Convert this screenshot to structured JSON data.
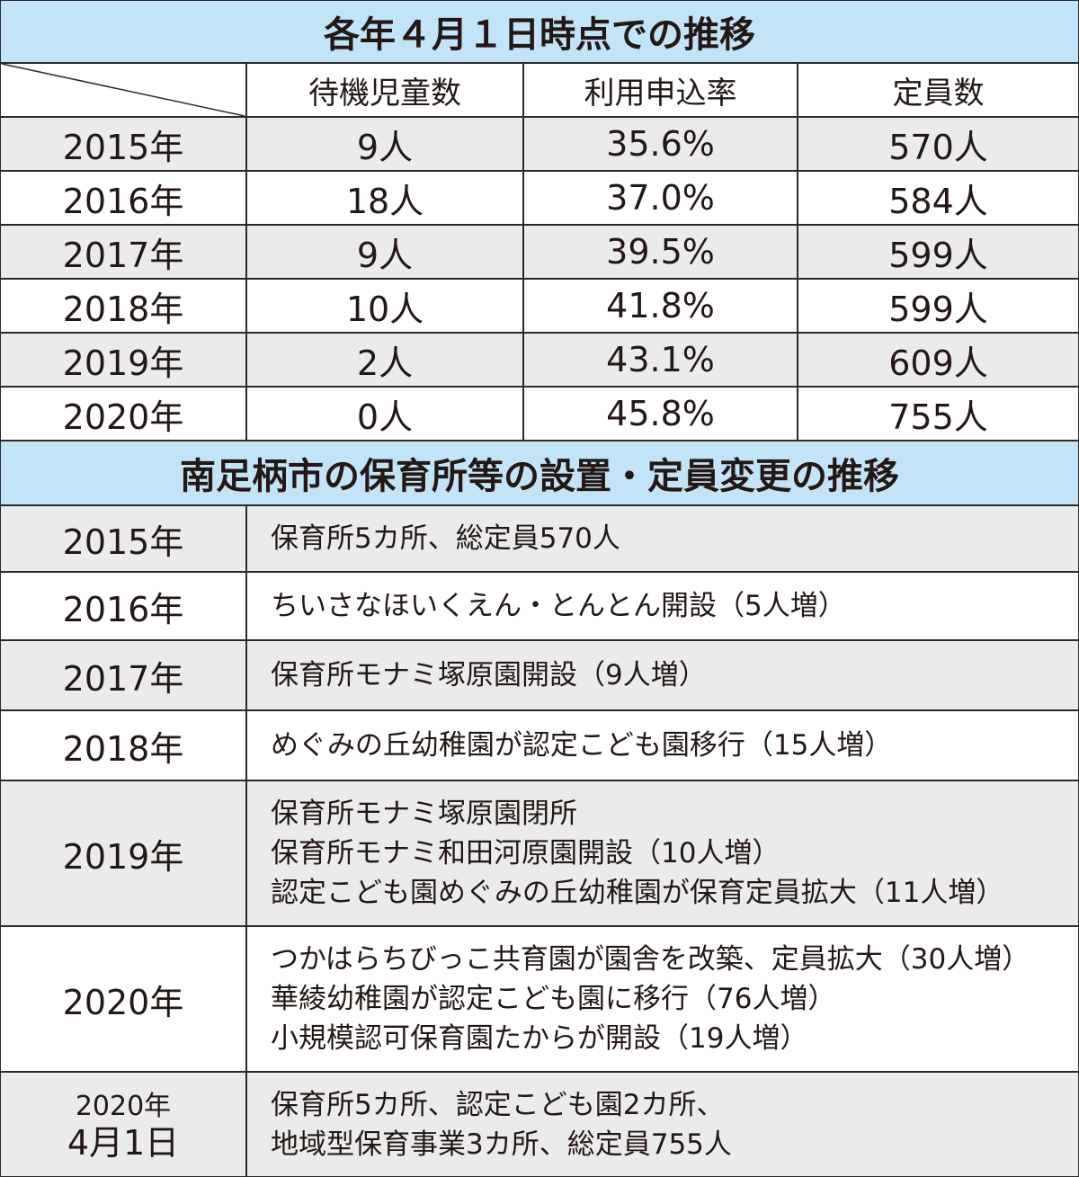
{
  "table1": {
    "title": "各年４月１日時点での推移",
    "columns": [
      "待機児童数",
      "利用申込率",
      "定員数"
    ],
    "rows": [
      [
        "2015年",
        "9人",
        "35.6%",
        "570人"
      ],
      [
        "2016年",
        "18人",
        "37.0%",
        "584人"
      ],
      [
        "2017年",
        "9人",
        "39.5%",
        "599人"
      ],
      [
        "2018年",
        "10人",
        "41.8%",
        "599人"
      ],
      [
        "2019年",
        "2人",
        "43.1%",
        "609人"
      ],
      [
        "2020年",
        "0人",
        "45.8%",
        "755人"
      ]
    ]
  },
  "table2": {
    "title": "南足柄市の保育所等の設置・定員変更の推移",
    "rows": [
      {
        "label": [
          "2015年"
        ],
        "lines": [
          "保育所5カ所、総定員570人"
        ]
      },
      {
        "label": [
          "2016年"
        ],
        "lines": [
          "ちいさなほいくえん・とんとん開設（5人増）"
        ]
      },
      {
        "label": [
          "2017年"
        ],
        "lines": [
          "保育所モナミ塚原園開設（9人増）"
        ]
      },
      {
        "label": [
          "2018年"
        ],
        "lines": [
          "めぐみの丘幼稚園が認定こども園移行（15人増）"
        ]
      },
      {
        "label": [
          "2019年"
        ],
        "lines": [
          "保育所モナミ塚原園閉所",
          "保育所モナミ和田河原園開設（10人増）",
          "認定こども園めぐみの丘幼稚園が保育定員拡大（11人増）"
        ]
      },
      {
        "label": [
          "2020年"
        ],
        "lines": [
          "つかはらちびっこ共育園が園舎を改築、定員拡大（30人増）",
          "華綾幼稚園が認定こども園に移行（76人増）",
          "小規模認可保育園たからが開設（19人増）"
        ]
      },
      {
        "label": [
          "2020年",
          "4月1日"
        ],
        "lines": [
          "保育所5カ所、認定こども園2カ所、",
          "地域型保育事業3カ所、総定員755人"
        ]
      }
    ]
  }
}
